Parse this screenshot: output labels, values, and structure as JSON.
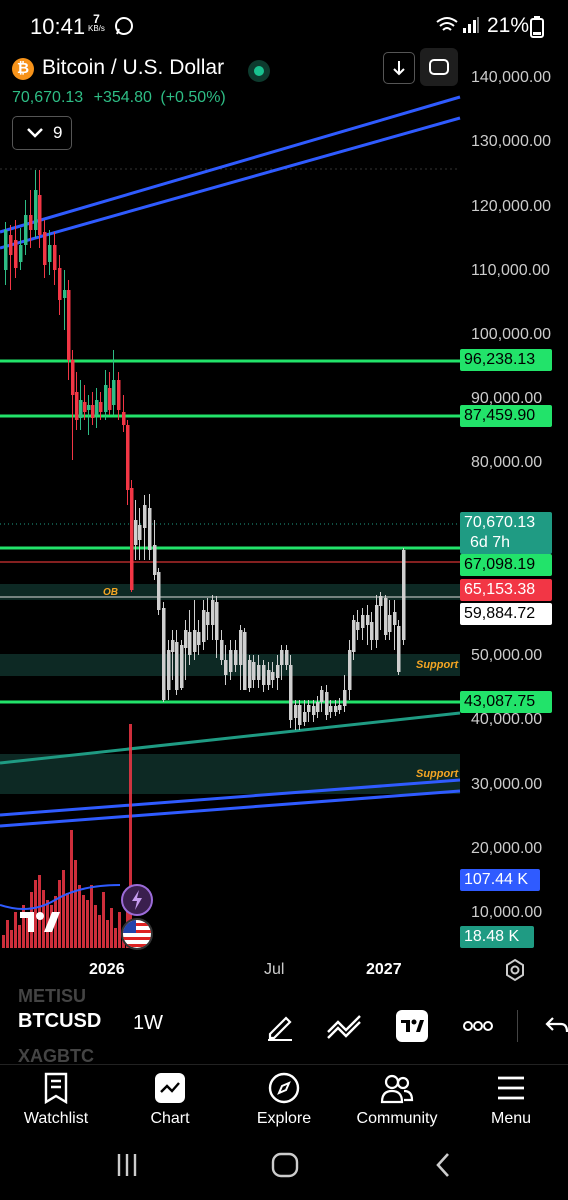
{
  "status_bar": {
    "time": "10:41",
    "kbs_value": "7",
    "kbs_unit": "KB/s",
    "battery": "21%"
  },
  "header": {
    "title": "Bitcoin / U.S. Dollar",
    "last_price": "70,670.13",
    "change": "+354.80",
    "change_pct": "(+0.50%)",
    "indicator_count": "9"
  },
  "price_axis": {
    "labels": [
      "140,000.00",
      "130,000.00",
      "120,000.00",
      "110,000.00",
      "100,000.00",
      "90,000.00",
      "80,000.00",
      "50,000.00",
      "40,000.00",
      "30,000.00",
      "20,000.00",
      "10,000.00"
    ]
  },
  "price_tags": {
    "level_1": "96,238.13",
    "level_2": "87,459.90",
    "last": "70,670.13",
    "countdown": "6d 7h",
    "level_3": "67,098.19",
    "level_4": "65,153.38",
    "level_5": "59,884.72",
    "level_6": "43,087.75",
    "volume": "107.44 K",
    "volume_ma": "18.48 K"
  },
  "annotations": {
    "ob": "OB",
    "support_1": "Support",
    "support_2": "Support"
  },
  "time_axis": [
    "2026",
    "Jul",
    "2027"
  ],
  "toolbar": {
    "ghost_top": "METISU",
    "symbol": "BTCUSD",
    "interval": "1W",
    "ghost_bottom": "XAGBTC"
  },
  "bottom_nav": [
    "Watchlist",
    "Chart",
    "Explore",
    "Community",
    "Menu"
  ],
  "colors": {
    "up": "#2ebd85",
    "down": "#f23645",
    "level_green": "#22e36a",
    "trend_blue": "#2f5bff",
    "teal": "#1f9b83"
  }
}
